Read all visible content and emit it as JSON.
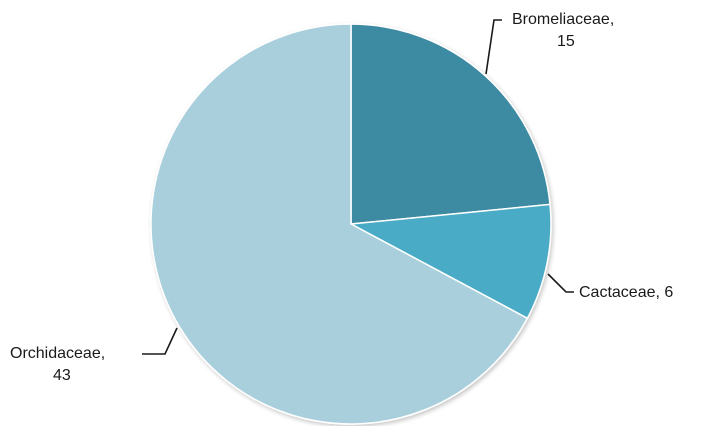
{
  "chart_data": {
    "type": "pie",
    "title": "",
    "slices": [
      {
        "label": "Bromeliaceae",
        "value": 15,
        "color": "#3e8aa3",
        "label_text": [
          "Bromeliaceae,",
          "15"
        ]
      },
      {
        "label": "Cactaceae",
        "value": 6,
        "color": "#4aabc6",
        "label_text": [
          "Cactaceae, 6"
        ]
      },
      {
        "label": "Orchidaceae",
        "value": 43,
        "color": "#a9cfdc",
        "label_text": [
          "Orchidaceae,",
          "43"
        ]
      }
    ],
    "start_angle": "12 o'clock",
    "direction": "clockwise",
    "legend": "none",
    "data_labels": "outside with leader lines"
  }
}
